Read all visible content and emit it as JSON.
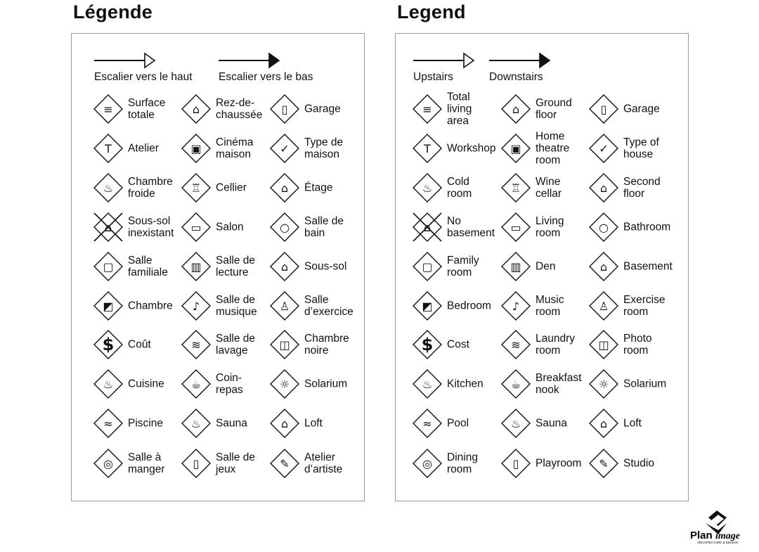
{
  "panels": [
    {
      "title": "Légende",
      "stairs_up": "Escalier vers le haut",
      "stairs_down": "Escalier vers le bas",
      "items": [
        {
          "label": "Surface\ntotale",
          "icon": "total-area-icon"
        },
        {
          "label": "Rez-de-\nchaussée",
          "icon": "ground-floor-icon"
        },
        {
          "label": "Garage",
          "icon": "garage-icon"
        },
        {
          "label": "Atelier",
          "icon": "hammer-icon"
        },
        {
          "label": "Cinéma\nmaison",
          "icon": "home-theatre-icon"
        },
        {
          "label": "Type de\nmaison",
          "icon": "house-check-icon"
        },
        {
          "label": "Chambre\nfroide",
          "icon": "thermometer-icon"
        },
        {
          "label": "Cellier",
          "icon": "wine-icon"
        },
        {
          "label": "Étage",
          "icon": "second-floor-icon"
        },
        {
          "label": "Sous-sol\ninexistant",
          "icon": "no-basement-icon"
        },
        {
          "label": "Salon",
          "icon": "sofa-icon"
        },
        {
          "label": "Salle de\nbain",
          "icon": "toilet-icon"
        },
        {
          "label": "Salle\nfamiliale",
          "icon": "tv-icon"
        },
        {
          "label": "Salle de\nlecture",
          "icon": "book-icon"
        },
        {
          "label": "Sous-sol",
          "icon": "basement-icon"
        },
        {
          "label": "Chambre",
          "icon": "bed-icon"
        },
        {
          "label": "Salle de\nmusique",
          "icon": "music-note-icon"
        },
        {
          "label": "Salle\nd’exercice",
          "icon": "weightlifter-icon"
        },
        {
          "label": "Coût",
          "icon": "dollar-icon"
        },
        {
          "label": "Salle de\nlavage",
          "icon": "laundry-icon"
        },
        {
          "label": "Chambre\nnoire",
          "icon": "camera-icon"
        },
        {
          "label": "Cuisine",
          "icon": "pot-icon"
        },
        {
          "label": "Coin-\nrepas",
          "icon": "coffee-cup-icon"
        },
        {
          "label": "Solarium",
          "icon": "sun-icon"
        },
        {
          "label": "Piscine",
          "icon": "swimmer-icon"
        },
        {
          "label": "Sauna",
          "icon": "sauna-icon"
        },
        {
          "label": "Loft",
          "icon": "loft-icon"
        },
        {
          "label": "Salle à\nmanger",
          "icon": "plate-icon"
        },
        {
          "label": "Salle de\njeux",
          "icon": "playroom-icon"
        },
        {
          "label": "Atelier\nd’artiste",
          "icon": "palette-icon"
        }
      ]
    },
    {
      "title": "Legend",
      "stairs_up": "Upstairs",
      "stairs_down": "Downstairs",
      "items": [
        {
          "label": "Total\nliving\narea",
          "icon": "total-area-icon"
        },
        {
          "label": "Ground\nfloor",
          "icon": "ground-floor-icon"
        },
        {
          "label": "Garage",
          "icon": "garage-icon"
        },
        {
          "label": "Workshop",
          "icon": "hammer-icon"
        },
        {
          "label": "Home\ntheatre\nroom",
          "icon": "home-theatre-icon"
        },
        {
          "label": "Type of\nhouse",
          "icon": "house-check-icon"
        },
        {
          "label": "Cold\nroom",
          "icon": "thermometer-icon"
        },
        {
          "label": "Wine\ncellar",
          "icon": "wine-icon"
        },
        {
          "label": "Second\nfloor",
          "icon": "second-floor-icon"
        },
        {
          "label": "No\nbasement",
          "icon": "no-basement-icon"
        },
        {
          "label": "Living\nroom",
          "icon": "sofa-icon"
        },
        {
          "label": "Bathroom",
          "icon": "toilet-icon"
        },
        {
          "label": "Family\nroom",
          "icon": "tv-icon"
        },
        {
          "label": "Den",
          "icon": "book-icon"
        },
        {
          "label": "Basement",
          "icon": "basement-icon"
        },
        {
          "label": "Bedroom",
          "icon": "bed-icon"
        },
        {
          "label": "Music\nroom",
          "icon": "music-note-icon"
        },
        {
          "label": "Exercise\nroom",
          "icon": "weightlifter-icon"
        },
        {
          "label": "Cost",
          "icon": "dollar-icon"
        },
        {
          "label": "Laundry\nroom",
          "icon": "laundry-icon"
        },
        {
          "label": "Photo\nroom",
          "icon": "camera-icon"
        },
        {
          "label": "Kitchen",
          "icon": "pot-icon"
        },
        {
          "label": "Breakfast\nnook",
          "icon": "coffee-cup-icon"
        },
        {
          "label": "Solarium",
          "icon": "sun-icon"
        },
        {
          "label": "Pool",
          "icon": "swimmer-icon"
        },
        {
          "label": "Sauna",
          "icon": "sauna-icon"
        },
        {
          "label": "Loft",
          "icon": "loft-icon"
        },
        {
          "label": "Dining\nroom",
          "icon": "plate-icon"
        },
        {
          "label": "Playroom",
          "icon": "playroom-icon"
        },
        {
          "label": "Studio",
          "icon": "palette-icon"
        }
      ]
    }
  ],
  "logo": {
    "name": "PlanImage",
    "tagline": "ARCHITECTURE & DESIGN"
  }
}
